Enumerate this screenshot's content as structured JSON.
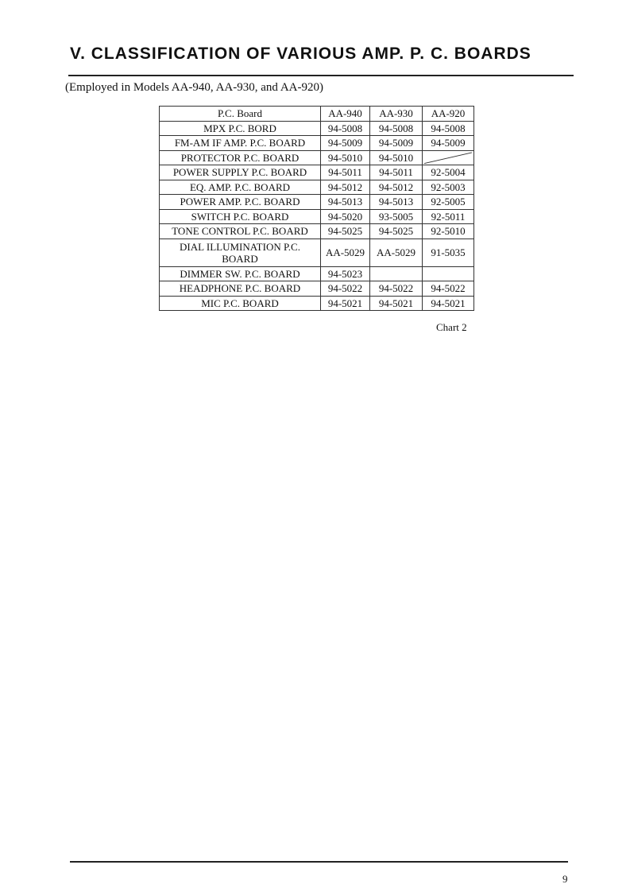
{
  "title": "V. CLASSIFICATION OF VARIOUS AMP. P. C. BOARDS",
  "subtitle": "(Employed in Models AA-940, AA-930, and AA-920)",
  "table": {
    "headers": [
      "P.C. Board",
      "AA-940",
      "AA-930",
      "AA-920"
    ],
    "rows": [
      [
        "MPX P.C. BORD",
        "94-5008",
        "94-5008",
        "94-5008"
      ],
      [
        "FM-AM IF AMP. P.C. BOARD",
        "94-5009",
        "94-5009",
        "94-5009"
      ],
      [
        "PROTECTOR P.C. BOARD",
        "94-5010",
        "94-5010",
        ""
      ],
      [
        "POWER SUPPLY P.C. BOARD",
        "94-5011",
        "94-5011",
        "92-5004"
      ],
      [
        "EQ. AMP. P.C. BOARD",
        "94-5012",
        "94-5012",
        "92-5003"
      ],
      [
        "POWER AMP. P.C. BOARD",
        "94-5013",
        "94-5013",
        "92-5005"
      ],
      [
        "SWITCH P.C. BOARD",
        "94-5020",
        "93-5005",
        "92-5011"
      ],
      [
        "TONE CONTROL P.C. BOARD",
        "94-5025",
        "94-5025",
        "92-5010"
      ],
      [
        "DIAL ILLUMINATION P.C. BOARD",
        "AA-5029",
        "AA-5029",
        "91-5035"
      ],
      [
        "DIMMER SW. P.C. BOARD",
        "94-5023",
        "",
        ""
      ],
      [
        "HEADPHONE P.C. BOARD",
        "94-5022",
        "94-5022",
        "94-5022"
      ],
      [
        "MIC P.C. BOARD",
        "94-5021",
        "94-5021",
        "94-5021"
      ]
    ]
  },
  "caption": "Chart 2",
  "page_number": "9"
}
